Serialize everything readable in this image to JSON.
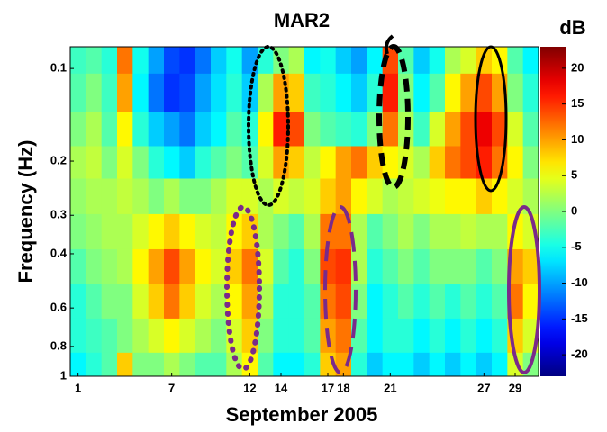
{
  "chart_data": {
    "type": "heatmap",
    "title": "MAR2",
    "xlabel": "September 2005",
    "ylabel": "Frequency (Hz)",
    "colorbar_label": "dB",
    "colormap": "jet",
    "x": [
      1,
      2,
      3,
      4,
      5,
      6,
      7,
      8,
      9,
      10,
      11,
      12,
      13,
      14,
      15,
      16,
      17,
      18,
      19,
      20,
      21,
      22,
      23,
      24,
      25,
      26,
      27,
      28,
      29,
      30
    ],
    "y": [
      0.09,
      0.12,
      0.16,
      0.2,
      0.26,
      0.34,
      0.44,
      0.57,
      0.74,
      0.95
    ],
    "z": [
      [
        -3,
        -2,
        -4,
        12,
        -5,
        -10,
        -14,
        -15,
        -12,
        -8,
        -5,
        -10,
        -4,
        0,
        2,
        -6,
        -5,
        -8,
        -10,
        -6,
        14,
        -2,
        -8,
        -5,
        2,
        4,
        8,
        6,
        -2,
        -6
      ],
      [
        -2,
        0,
        -3,
        10,
        -6,
        -12,
        -15,
        -14,
        -10,
        -7,
        -4,
        -8,
        2,
        10,
        8,
        -3,
        -4,
        -6,
        -8,
        -4,
        16,
        0,
        -6,
        -2,
        6,
        10,
        14,
        10,
        0,
        -4
      ],
      [
        0,
        2,
        -2,
        6,
        -4,
        -8,
        -10,
        -12,
        -8,
        -6,
        -2,
        -4,
        6,
        16,
        14,
        0,
        -2,
        -3,
        -4,
        0,
        12,
        2,
        -3,
        4,
        10,
        14,
        18,
        14,
        4,
        -2
      ],
      [
        2,
        3,
        0,
        4,
        0,
        -4,
        -6,
        -8,
        -4,
        -2,
        0,
        -2,
        4,
        10,
        8,
        3,
        6,
        10,
        12,
        8,
        6,
        4,
        2,
        8,
        12,
        14,
        16,
        12,
        6,
        0
      ],
      [
        1,
        2,
        2,
        3,
        2,
        0,
        2,
        0,
        0,
        2,
        4,
        4,
        2,
        4,
        3,
        4,
        8,
        10,
        6,
        4,
        2,
        3,
        4,
        5,
        6,
        6,
        8,
        6,
        4,
        2
      ],
      [
        0,
        1,
        2,
        2,
        4,
        6,
        8,
        6,
        4,
        3,
        6,
        8,
        2,
        0,
        -2,
        2,
        12,
        12,
        2,
        -2,
        0,
        2,
        0,
        2,
        2,
        3,
        2,
        2,
        6,
        4
      ],
      [
        -2,
        0,
        1,
        2,
        6,
        10,
        14,
        10,
        6,
        4,
        8,
        12,
        4,
        -2,
        -4,
        0,
        14,
        15,
        2,
        -4,
        -2,
        0,
        -2,
        0,
        0,
        0,
        -2,
        0,
        10,
        8
      ],
      [
        -4,
        -2,
        0,
        0,
        4,
        8,
        12,
        8,
        4,
        2,
        6,
        10,
        2,
        -4,
        -4,
        -2,
        12,
        14,
        0,
        -6,
        -4,
        -2,
        -4,
        -2,
        -4,
        -2,
        -4,
        -2,
        12,
        6
      ],
      [
        -4,
        -3,
        -2,
        0,
        2,
        4,
        6,
        4,
        2,
        0,
        4,
        8,
        0,
        -4,
        -4,
        -2,
        10,
        12,
        -2,
        -6,
        -4,
        -4,
        -6,
        -4,
        -6,
        -4,
        -6,
        -4,
        8,
        4
      ],
      [
        -6,
        -4,
        -2,
        8,
        0,
        0,
        2,
        0,
        -2,
        -2,
        2,
        6,
        -2,
        -6,
        -6,
        -4,
        8,
        10,
        -4,
        -8,
        -6,
        -6,
        -8,
        -6,
        -8,
        -6,
        -8,
        -6,
        4,
        0
      ]
    ],
    "xlim": [
      0.5,
      30.5
    ],
    "ylim": [
      0.085,
      1
    ],
    "yscale": "log",
    "xticks": [
      1,
      7,
      12,
      14,
      17,
      18,
      21,
      27,
      29
    ],
    "yticks": [
      0.1,
      0.2,
      0.3,
      0.4,
      0.6,
      0.8,
      1
    ],
    "zlim": [
      -23,
      23
    ],
    "zticks": [
      20,
      15,
      10,
      5,
      0,
      -5,
      -10,
      -15,
      -20
    ]
  }
}
